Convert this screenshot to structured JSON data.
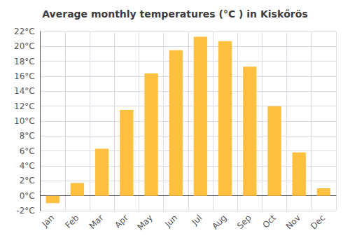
{
  "chart_data": {
    "type": "bar",
    "title": "Average monthly temperatures (°C ) in Kiskőrös",
    "categories": [
      "Jan",
      "Feb",
      "Mar",
      "Apr",
      "May",
      "Jun",
      "Jul",
      "Aug",
      "Sep",
      "Oct",
      "Nov",
      "Dec"
    ],
    "values": [
      -1.0,
      1.7,
      6.3,
      11.5,
      16.4,
      19.5,
      21.3,
      20.7,
      17.3,
      12.0,
      5.8,
      1.0
    ],
    "color": "#FFC040",
    "ylim": [
      -2,
      22
    ],
    "yticks": [
      {
        "value": -2,
        "label": "-2°C"
      },
      {
        "value": 0,
        "label": "0°C"
      },
      {
        "value": 2,
        "label": "2°C"
      },
      {
        "value": 4,
        "label": "4°C"
      },
      {
        "value": 6,
        "label": "6°C"
      },
      {
        "value": 8,
        "label": "8°C"
      },
      {
        "value": 10,
        "label": "10°C"
      },
      {
        "value": 12,
        "label": "12°C"
      },
      {
        "value": 14,
        "label": "14°C"
      },
      {
        "value": 16,
        "label": "16°C"
      },
      {
        "value": 18,
        "label": "18°C"
      },
      {
        "value": 20,
        "label": "20°C"
      },
      {
        "value": 22,
        "label": "22°C"
      }
    ],
    "grid": true
  }
}
